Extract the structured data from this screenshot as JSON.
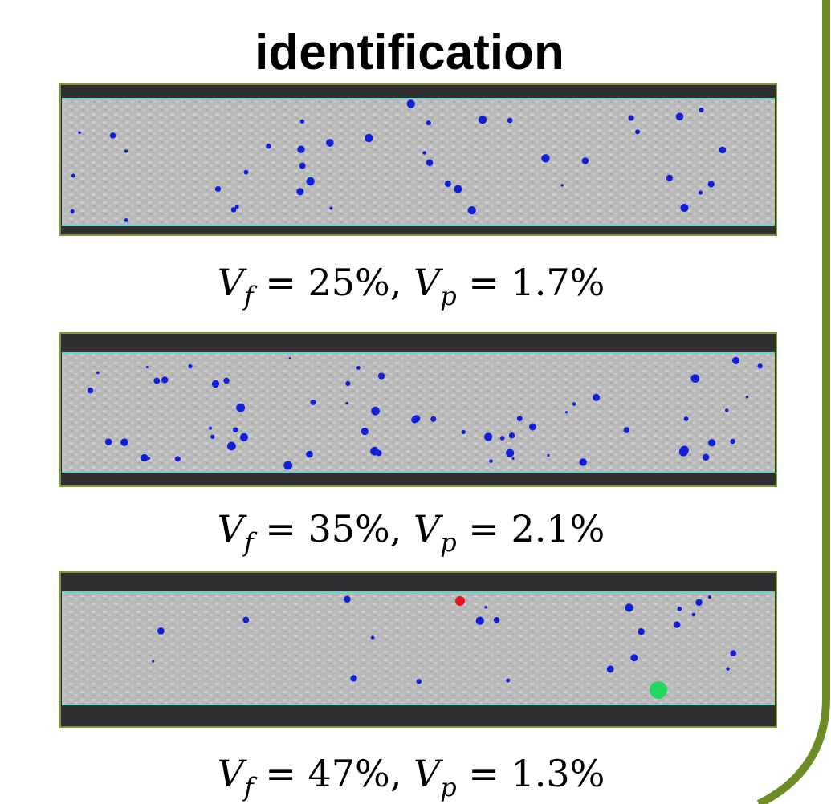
{
  "header": {
    "title": "identification"
  },
  "panels": [
    {
      "caption": [
        "V",
        "f",
        " = 25%, ",
        "V",
        "p",
        " = 1.7%"
      ]
    },
    {
      "caption": [
        "V",
        "f",
        " = 35%, ",
        "V",
        "p",
        " = 2.1%"
      ]
    },
    {
      "caption": [
        "V",
        "f",
        " = 47%, ",
        "V",
        "p",
        " = 1.3%"
      ]
    }
  ]
}
